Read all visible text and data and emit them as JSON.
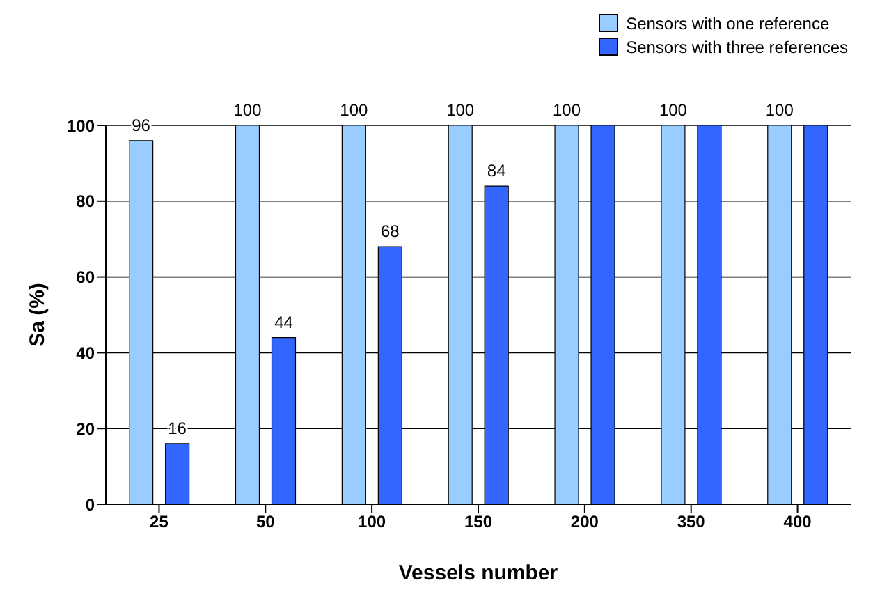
{
  "chart_data": {
    "type": "bar",
    "xlabel": "Vessels number",
    "ylabel": "Sa (%)",
    "categories": [
      "25",
      "50",
      "100",
      "150",
      "200",
      "350",
      "400"
    ],
    "series": [
      {
        "name": "Sensors with one reference",
        "color": "#99ccff",
        "values": [
          96,
          100,
          100,
          100,
          100,
          100,
          100
        ],
        "value_labels": [
          "96",
          "100",
          "100",
          "100",
          "100",
          "100",
          "100"
        ]
      },
      {
        "name": "Sensors with three references",
        "color": "#3366ff",
        "values": [
          16,
          44,
          68,
          84,
          100,
          100,
          100
        ],
        "value_labels": [
          "16",
          "44",
          "68",
          "84",
          null,
          null,
          null
        ]
      }
    ],
    "ylim": [
      0,
      100
    ],
    "yticks": [
      0,
      20,
      40,
      60,
      80,
      100
    ],
    "grid": "y",
    "legend": "top right"
  }
}
